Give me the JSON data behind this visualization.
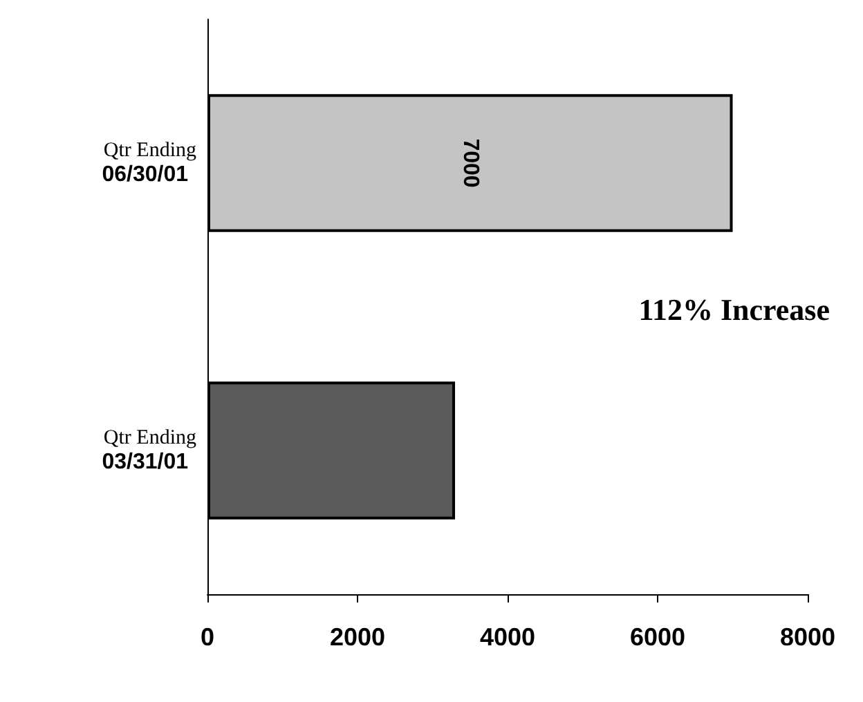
{
  "chart_data": {
    "type": "bar",
    "orientation": "horizontal",
    "categories": [
      "Qtr Ending\n06/30/01",
      "Qtr Ending\n03/31/01"
    ],
    "values": [
      7000,
      3300
    ],
    "colors": [
      "#c4c4c4",
      "#5a5a5a"
    ],
    "value_labels": [
      "7000",
      null
    ],
    "xlim": [
      0,
      8000
    ],
    "xticks": [
      0,
      2000,
      4000,
      6000,
      8000
    ],
    "grid": false,
    "annotations": [
      "112% Increase"
    ]
  }
}
